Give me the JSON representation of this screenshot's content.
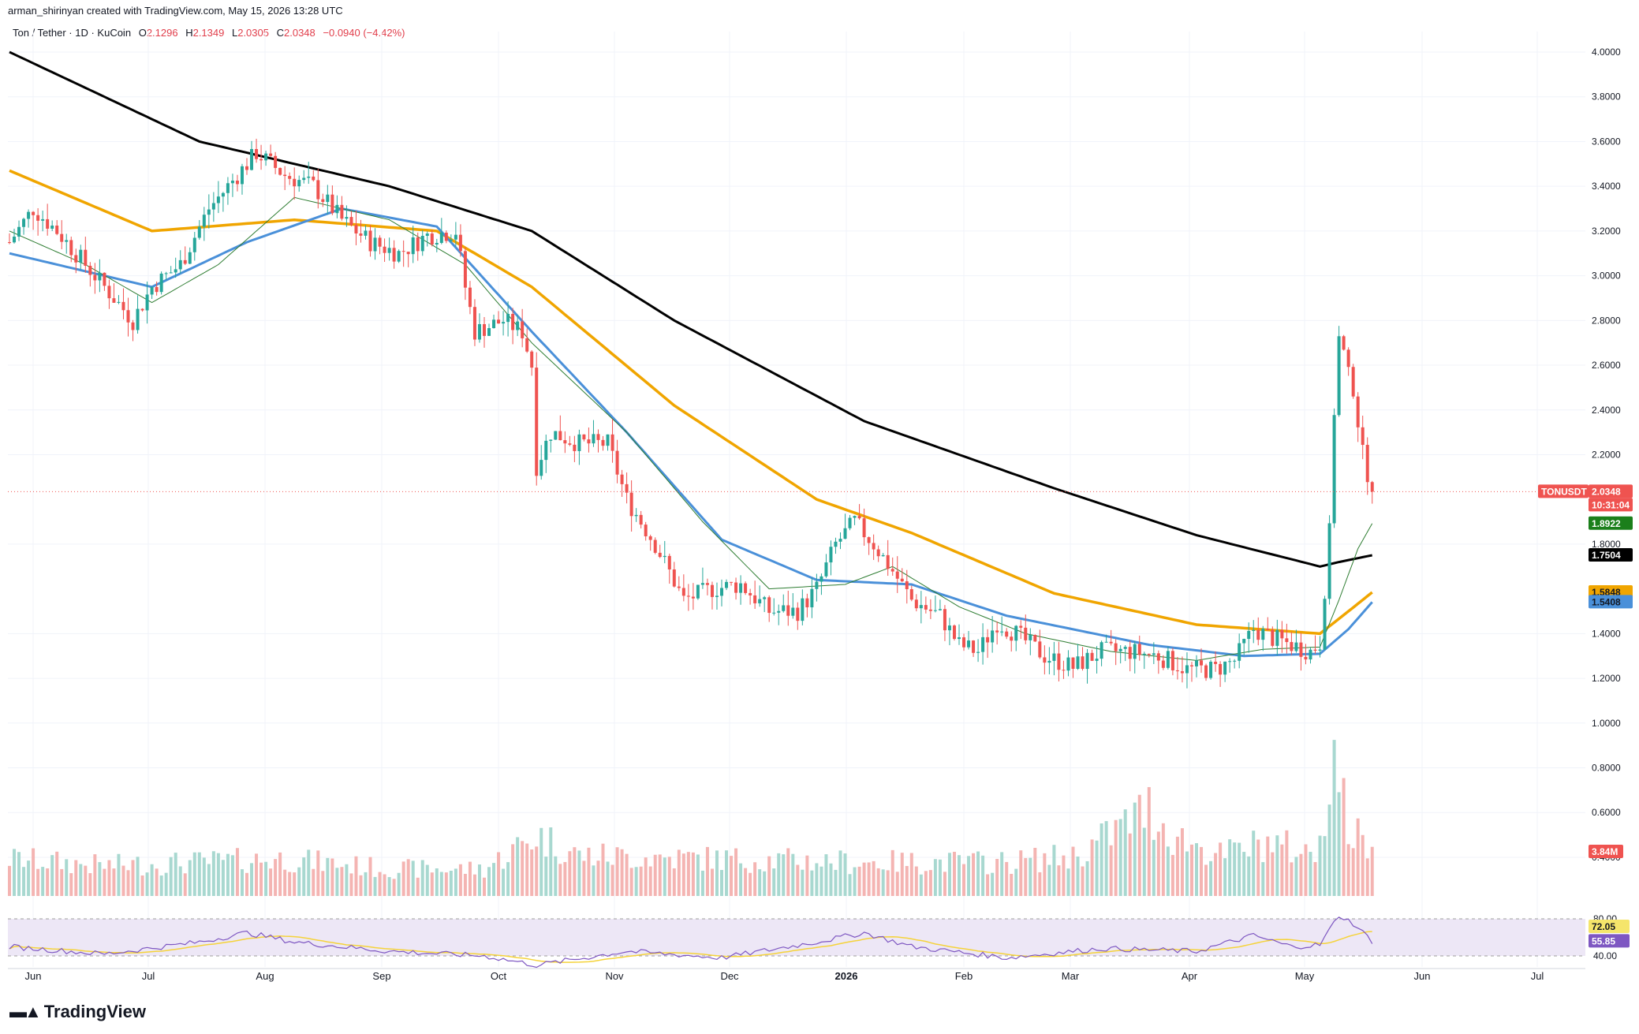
{
  "caption": "arman_shirinyan created with TradingView.com, May 15, 2026 13:28 UTC",
  "legend": {
    "symbol": "Ton / Tether · 1D · KuCoin",
    "open_label": "O",
    "open": "2.1296",
    "high_label": "H",
    "high": "2.1349",
    "low_label": "L",
    "low": "2.0305",
    "close_label": "C",
    "close": "2.0348",
    "change": "−0.0940 (−4.42%)"
  },
  "footer": {
    "brand": "TradingView",
    "logo_icon": "tradingview-logo-icon"
  },
  "colors": {
    "up": "#26a69a",
    "down": "#ef5350",
    "ma200": "#000000",
    "ma100": "#f0a500",
    "ma50": "#4a90d9",
    "ma20": "#2e7d32",
    "rsi_line": "#7e57c2",
    "rsi_ma": "#f5d33a",
    "rsi_band": "#ede7f6"
  },
  "chart_data": {
    "type": "candlestick",
    "instrument": "TONUSDT",
    "timeframe": "1D",
    "x_axis_ticks": [
      "Jun",
      "Jul",
      "Aug",
      "Sep",
      "Oct",
      "Nov",
      "Dec",
      "2026",
      "Feb",
      "Mar",
      "Apr",
      "May",
      "Jun",
      "Jul"
    ],
    "y_axis_ticks": [
      "4.0000",
      "3.8000",
      "3.6000",
      "3.4000",
      "3.2000",
      "3.0000",
      "2.8000",
      "2.6000",
      "2.4000",
      "2.2000",
      "1.8000",
      "1.4000",
      "1.2000",
      "1.0000",
      "0.8000",
      "0.6000",
      "0.4000"
    ],
    "ylim": [
      0.4,
      4.1
    ],
    "price_path": [
      [
        0,
        3.15
      ],
      [
        5,
        3.3
      ],
      [
        10,
        3.2
      ],
      [
        16,
        3.05
      ],
      [
        22,
        2.9
      ],
      [
        26,
        2.8
      ],
      [
        30,
        2.95
      ],
      [
        36,
        3.05
      ],
      [
        42,
        3.3
      ],
      [
        48,
        3.45
      ],
      [
        52,
        3.55
      ],
      [
        58,
        3.45
      ],
      [
        64,
        3.4
      ],
      [
        70,
        3.25
      ],
      [
        76,
        3.15
      ],
      [
        82,
        3.1
      ],
      [
        88,
        3.18
      ],
      [
        94,
        3.2
      ],
      [
        96,
        2.95
      ],
      [
        98,
        2.75
      ],
      [
        104,
        2.8
      ],
      [
        108,
        2.75
      ],
      [
        110,
        2.6
      ],
      [
        111,
        2.15
      ],
      [
        114,
        2.3
      ],
      [
        120,
        2.25
      ],
      [
        126,
        2.25
      ],
      [
        130,
        2.0
      ],
      [
        136,
        1.8
      ],
      [
        142,
        1.55
      ],
      [
        148,
        1.6
      ],
      [
        154,
        1.62
      ],
      [
        160,
        1.5
      ],
      [
        166,
        1.5
      ],
      [
        170,
        1.6
      ],
      [
        174,
        1.8
      ],
      [
        178,
        1.9
      ],
      [
        182,
        1.8
      ],
      [
        186,
        1.68
      ],
      [
        190,
        1.55
      ],
      [
        196,
        1.48
      ],
      [
        200,
        1.35
      ],
      [
        204,
        1.32
      ],
      [
        208,
        1.45
      ],
      [
        212,
        1.4
      ],
      [
        218,
        1.3
      ],
      [
        224,
        1.25
      ],
      [
        230,
        1.32
      ],
      [
        236,
        1.32
      ],
      [
        242,
        1.3
      ],
      [
        248,
        1.24
      ],
      [
        254,
        1.24
      ],
      [
        258,
        1.28
      ],
      [
        262,
        1.42
      ],
      [
        266,
        1.38
      ],
      [
        270,
        1.35
      ],
      [
        274,
        1.32
      ],
      [
        276,
        1.36
      ],
      [
        277,
        1.6
      ],
      [
        278,
        1.85
      ],
      [
        279,
        2.4
      ],
      [
        280,
        2.72
      ],
      [
        281,
        2.65
      ],
      [
        282,
        2.55
      ],
      [
        283,
        2.5
      ],
      [
        284,
        2.35
      ],
      [
        285,
        2.2
      ],
      [
        286,
        2.12
      ],
      [
        287,
        2.0348
      ]
    ],
    "ma_lines": [
      {
        "name": "MA200",
        "last_value": "1.7504",
        "points": [
          [
            0,
            4.0
          ],
          [
            40,
            3.6
          ],
          [
            80,
            3.4
          ],
          [
            110,
            3.2
          ],
          [
            140,
            2.8
          ],
          [
            180,
            2.35
          ],
          [
            220,
            2.05
          ],
          [
            250,
            1.84
          ],
          [
            276,
            1.7
          ],
          [
            280,
            1.72
          ],
          [
            287,
            1.7504
          ]
        ]
      },
      {
        "name": "MA100",
        "last_value": "1.5848",
        "points": [
          [
            0,
            3.47
          ],
          [
            30,
            3.2
          ],
          [
            60,
            3.25
          ],
          [
            90,
            3.2
          ],
          [
            110,
            2.95
          ],
          [
            140,
            2.42
          ],
          [
            170,
            2.0
          ],
          [
            190,
            1.85
          ],
          [
            220,
            1.58
          ],
          [
            250,
            1.44
          ],
          [
            276,
            1.4
          ],
          [
            282,
            1.5
          ],
          [
            287,
            1.5848
          ]
        ]
      },
      {
        "name": "MA50",
        "last_value": "1.5408",
        "points": [
          [
            0,
            3.1
          ],
          [
            30,
            2.95
          ],
          [
            50,
            3.15
          ],
          [
            70,
            3.3
          ],
          [
            90,
            3.22
          ],
          [
            110,
            2.75
          ],
          [
            130,
            2.3
          ],
          [
            150,
            1.82
          ],
          [
            170,
            1.64
          ],
          [
            190,
            1.62
          ],
          [
            210,
            1.48
          ],
          [
            240,
            1.35
          ],
          [
            260,
            1.3
          ],
          [
            276,
            1.31
          ],
          [
            282,
            1.42
          ],
          [
            287,
            1.5408
          ]
        ]
      },
      {
        "name": "MA20",
        "last_value": "1.8922",
        "points": [
          [
            0,
            3.2
          ],
          [
            16,
            3.05
          ],
          [
            30,
            2.88
          ],
          [
            44,
            3.05
          ],
          [
            60,
            3.35
          ],
          [
            80,
            3.25
          ],
          [
            96,
            3.05
          ],
          [
            110,
            2.7
          ],
          [
            130,
            2.3
          ],
          [
            146,
            1.9
          ],
          [
            160,
            1.6
          ],
          [
            176,
            1.62
          ],
          [
            186,
            1.7
          ],
          [
            200,
            1.52
          ],
          [
            214,
            1.4
          ],
          [
            232,
            1.32
          ],
          [
            250,
            1.28
          ],
          [
            264,
            1.33
          ],
          [
            276,
            1.34
          ],
          [
            280,
            1.55
          ],
          [
            284,
            1.78
          ],
          [
            287,
            1.8922
          ]
        ]
      }
    ],
    "volume": {
      "last_value": "3.84M",
      "points": [
        [
          0,
          0.55
        ],
        [
          20,
          0.45
        ],
        [
          40,
          0.5
        ],
        [
          58,
          0.55
        ],
        [
          80,
          0.4
        ],
        [
          100,
          0.4
        ],
        [
          111,
          0.9
        ],
        [
          120,
          0.6
        ],
        [
          150,
          0.55
        ],
        [
          180,
          0.5
        ],
        [
          210,
          0.5
        ],
        [
          225,
          0.6
        ],
        [
          240,
          1.3
        ],
        [
          245,
          0.9
        ],
        [
          255,
          0.6
        ],
        [
          265,
          0.8
        ],
        [
          275,
          0.6
        ],
        [
          279,
          2.1
        ],
        [
          282,
          1.0
        ],
        [
          287,
          0.65
        ]
      ]
    },
    "rsi": {
      "value": "55.85",
      "ma_value": "72.05",
      "upper_band": "80.00",
      "lower_band": "40.00",
      "band_tick": "40.00",
      "points": [
        [
          0,
          50
        ],
        [
          20,
          42
        ],
        [
          40,
          55
        ],
        [
          50,
          65
        ],
        [
          60,
          55
        ],
        [
          80,
          45
        ],
        [
          100,
          40
        ],
        [
          111,
          30
        ],
        [
          130,
          45
        ],
        [
          150,
          38
        ],
        [
          170,
          55
        ],
        [
          180,
          65
        ],
        [
          190,
          50
        ],
        [
          210,
          38
        ],
        [
          230,
          48
        ],
        [
          250,
          45
        ],
        [
          262,
          62
        ],
        [
          270,
          50
        ],
        [
          276,
          52
        ],
        [
          280,
          84
        ],
        [
          283,
          75
        ],
        [
          287,
          55.85
        ]
      ]
    },
    "last_price_label": {
      "symbol": "TONUSDT",
      "price": "2.0348",
      "countdown": "10:31:04"
    }
  }
}
